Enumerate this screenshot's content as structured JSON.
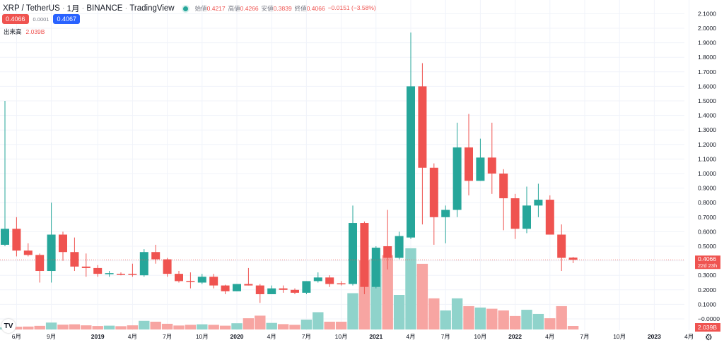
{
  "header": {
    "symbol": "XRP / TetherUS",
    "interval": "1月",
    "exchange": "BINANCE",
    "source": "TradingView",
    "open_label": "始値",
    "open": "0.4217",
    "high_label": "高値",
    "high": "0.4266",
    "low_label": "安値",
    "low": "0.3839",
    "close_label": "終値",
    "close": "0.4066",
    "change": "−0.0151 (−3.58%)"
  },
  "trade": {
    "sell": "0.4066",
    "spread": "0.0001",
    "buy": "0.4067"
  },
  "volume_legend": {
    "label": "出来高",
    "value": "2.039B"
  },
  "price_tag": {
    "price": "0.4066",
    "countdown": "22d 23h"
  },
  "volume_tag": "2.039B",
  "icons": {
    "logo": "TV",
    "settings": "⚙"
  },
  "colors": {
    "up": "#26a69a",
    "down": "#ef5350",
    "vol_up": "#8fd3cb",
    "vol_down": "#f7a5a2"
  },
  "chart_data": {
    "type": "candlestick",
    "y_ticks": [
      "2.1000",
      "2.0000",
      "1.9000",
      "1.8000",
      "1.7000",
      "1.6000",
      "1.5000",
      "1.4000",
      "1.3000",
      "1.2000",
      "1.1000",
      "1.0000",
      "0.9000",
      "0.8000",
      "0.7000",
      "0.6000",
      "0.5000",
      "0.3000",
      "0.2000",
      "0.1000",
      "−0.0000"
    ],
    "y_tick_values": [
      2.1,
      2.0,
      1.9,
      1.8,
      1.7,
      1.6,
      1.5,
      1.4,
      1.3,
      1.2,
      1.1,
      1.0,
      0.9,
      0.8,
      0.7,
      0.6,
      0.5,
      0.3,
      0.2,
      0.1,
      0
    ],
    "ylim": [
      0,
      2.1
    ],
    "x_ticks": [
      {
        "i": 1,
        "label": "6月"
      },
      {
        "i": 4,
        "label": "9月"
      },
      {
        "i": 8,
        "label": "2019",
        "bold": true
      },
      {
        "i": 11,
        "label": "4月"
      },
      {
        "i": 14,
        "label": "7月"
      },
      {
        "i": 17,
        "label": "10月"
      },
      {
        "i": 20,
        "label": "2020",
        "bold": true
      },
      {
        "i": 23,
        "label": "4月"
      },
      {
        "i": 26,
        "label": "7月"
      },
      {
        "i": 29,
        "label": "10月"
      },
      {
        "i": 32,
        "label": "2021",
        "bold": true
      },
      {
        "i": 35,
        "label": "4月"
      },
      {
        "i": 38,
        "label": "7月"
      },
      {
        "i": 41,
        "label": "10月"
      },
      {
        "i": 44,
        "label": "2022",
        "bold": true
      },
      {
        "i": 47,
        "label": "4月"
      },
      {
        "i": 50,
        "label": "7月"
      },
      {
        "i": 53,
        "label": "10月"
      },
      {
        "i": 56,
        "label": "2023",
        "bold": true
      },
      {
        "i": 59,
        "label": "4月"
      }
    ],
    "start": "2018-05",
    "ohlc": [
      [
        0.51,
        1.5,
        0.5,
        0.62
      ],
      [
        0.62,
        0.7,
        0.43,
        0.47
      ],
      [
        0.47,
        0.52,
        0.43,
        0.44
      ],
      [
        0.44,
        0.45,
        0.25,
        0.33
      ],
      [
        0.33,
        0.8,
        0.25,
        0.58
      ],
      [
        0.58,
        0.6,
        0.4,
        0.46
      ],
      [
        0.46,
        0.56,
        0.33,
        0.36
      ],
      [
        0.36,
        0.45,
        0.29,
        0.35
      ],
      [
        0.35,
        0.37,
        0.29,
        0.31
      ],
      [
        0.31,
        0.33,
        0.29,
        0.315
      ],
      [
        0.31,
        0.32,
        0.3,
        0.305
      ],
      [
        0.31,
        0.38,
        0.29,
        0.305
      ],
      [
        0.3,
        0.48,
        0.29,
        0.46
      ],
      [
        0.46,
        0.51,
        0.38,
        0.41
      ],
      [
        0.41,
        0.42,
        0.29,
        0.31
      ],
      [
        0.31,
        0.33,
        0.25,
        0.26
      ],
      [
        0.26,
        0.32,
        0.21,
        0.258
      ],
      [
        0.25,
        0.31,
        0.24,
        0.29
      ],
      [
        0.29,
        0.31,
        0.21,
        0.23
      ],
      [
        0.23,
        0.235,
        0.17,
        0.19
      ],
      [
        0.19,
        0.24,
        0.19,
        0.24
      ],
      [
        0.24,
        0.35,
        0.23,
        0.23
      ],
      [
        0.23,
        0.24,
        0.11,
        0.17
      ],
      [
        0.17,
        0.23,
        0.17,
        0.21
      ],
      [
        0.21,
        0.23,
        0.18,
        0.2
      ],
      [
        0.2,
        0.21,
        0.17,
        0.18
      ],
      [
        0.18,
        0.26,
        0.17,
        0.26
      ],
      [
        0.26,
        0.32,
        0.25,
        0.285
      ],
      [
        0.285,
        0.3,
        0.22,
        0.24
      ],
      [
        0.245,
        0.26,
        0.23,
        0.24
      ],
      [
        0.24,
        0.78,
        0.23,
        0.66
      ],
      [
        0.66,
        0.67,
        0.17,
        0.22
      ],
      [
        0.22,
        0.5,
        0.21,
        0.49
      ],
      [
        0.5,
        0.75,
        0.34,
        0.42
      ],
      [
        0.42,
        0.6,
        0.41,
        0.57
      ],
      [
        0.56,
        1.97,
        0.55,
        1.6
      ],
      [
        1.6,
        1.76,
        0.65,
        1.04
      ],
      [
        1.04,
        1.07,
        0.51,
        0.7
      ],
      [
        0.7,
        0.78,
        0.52,
        0.75
      ],
      [
        0.75,
        1.35,
        0.7,
        1.18
      ],
      [
        1.18,
        1.41,
        0.85,
        0.95
      ],
      [
        0.95,
        1.24,
        0.95,
        1.11
      ],
      [
        1.11,
        1.35,
        0.86,
        1.0
      ],
      [
        1.0,
        1.03,
        0.61,
        0.83
      ],
      [
        0.83,
        0.86,
        0.55,
        0.62
      ],
      [
        0.62,
        0.91,
        0.59,
        0.78
      ],
      [
        0.78,
        0.93,
        0.7,
        0.82
      ],
      [
        0.82,
        0.85,
        0.58,
        0.58
      ],
      [
        0.58,
        0.65,
        0.33,
        0.42
      ],
      [
        0.4217,
        0.4266,
        0.3839,
        0.4066
      ]
    ],
    "volume_billions": [
      1.2,
      1.6,
      1.7,
      2.1,
      4.0,
      2.8,
      3.0,
      2.4,
      2.0,
      2.2,
      1.9,
      2.4,
      5.0,
      4.5,
      3.3,
      2.3,
      2.7,
      3.0,
      2.7,
      2.2,
      3.6,
      6.5,
      8.0,
      3.8,
      3.1,
      2.7,
      5.7,
      10.0,
      4.5,
      4.5,
      21.0,
      40.0,
      41.0,
      43.0,
      20.0,
      47.0,
      38.0,
      18.0,
      11.0,
      18.0,
      13.5,
      12.7,
      12.0,
      11.0,
      7.8,
      11.4,
      9.0,
      6.5,
      13.5,
      2.039
    ]
  }
}
